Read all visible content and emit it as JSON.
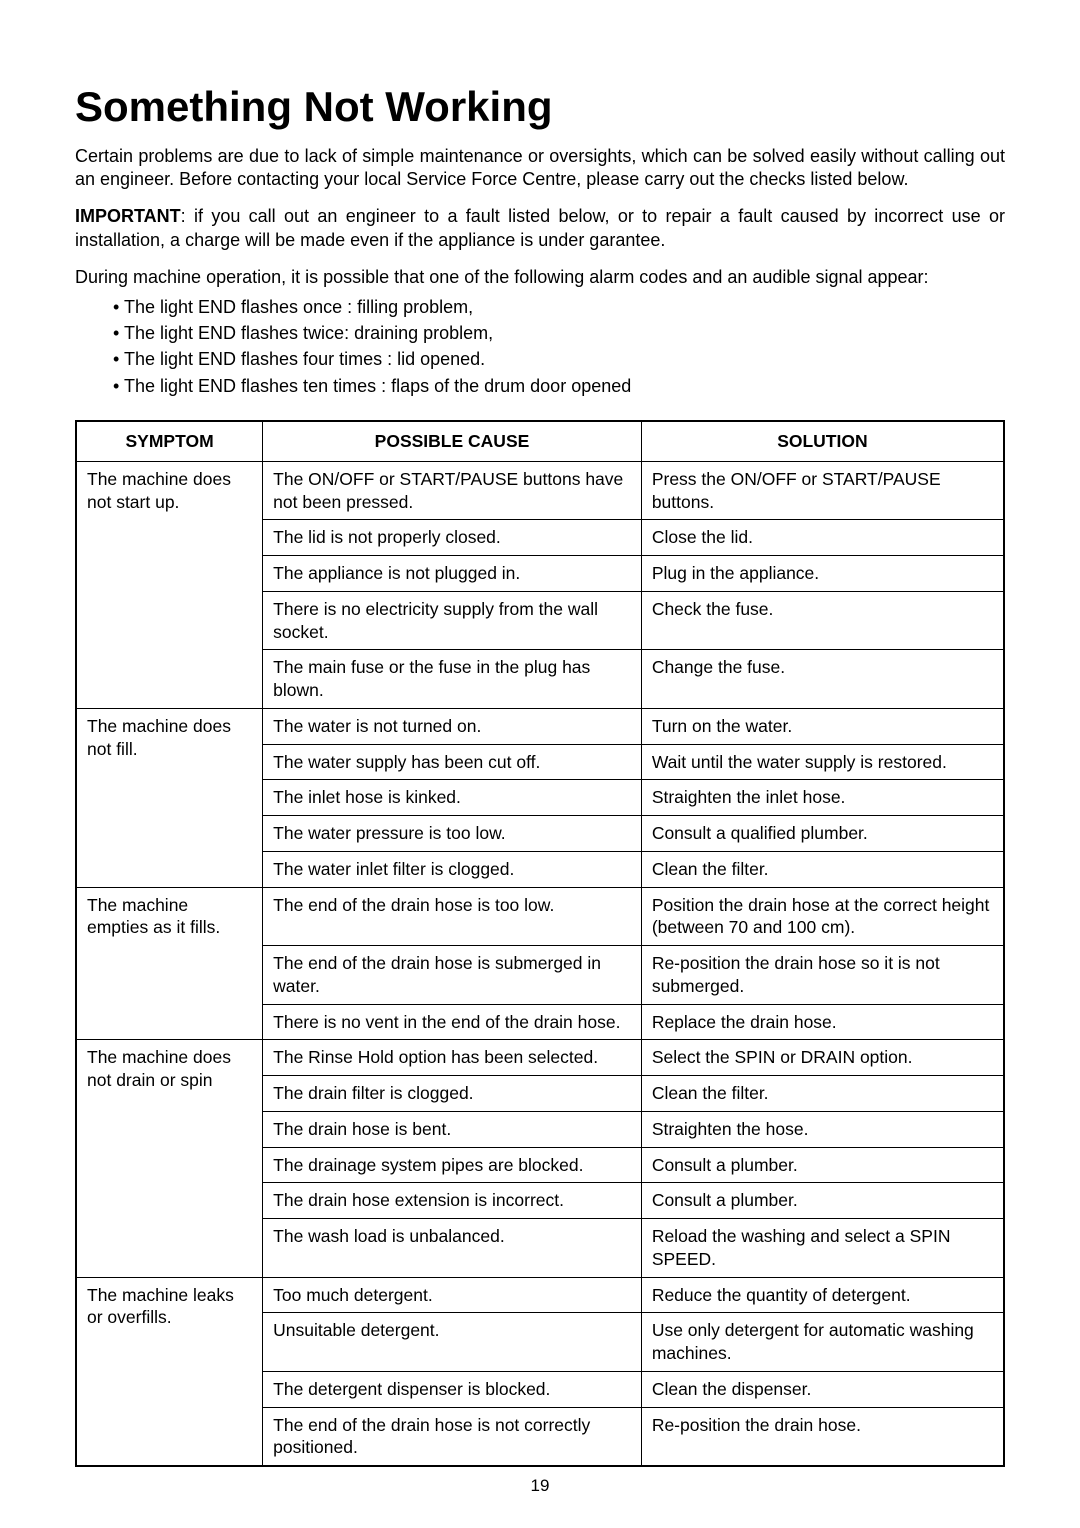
{
  "title": "Something Not Working",
  "intro": "Certain problems are due to lack of simple maintenance or oversights, which can be solved easily without calling out an engineer. Before contacting your local Service Force Centre, please carry out the checks listed below.",
  "important_label": "IMPORTANT",
  "important_text": ": if you call out an engineer to a fault listed below, or to repair a fault caused by incorrect use or installation, a charge will be made even if the appliance is under garantee.",
  "during": "During machine operation, it is possible that one of the following alarm codes and an audible signal appear:",
  "bullets": [
    "The light END flashes once : filling problem,",
    "The light END flashes twice: draining problem,",
    "The light END flashes four times : lid opened.",
    "The light END flashes ten times : flaps of the drum door opened"
  ],
  "headers": {
    "c1": "SYMPTOM",
    "c2": "POSSIBLE CAUSE",
    "c3": "SOLUTION"
  },
  "groups": [
    {
      "symptom": "The machine does not start up.",
      "rows": [
        {
          "cause": "The ON/OFF or START/PAUSE buttons have not been pressed.",
          "solution": "Press the ON/OFF or START/PAUSE buttons."
        },
        {
          "cause": "The lid is not properly closed.",
          "solution": "Close the lid."
        },
        {
          "cause": "The appliance is not plugged in.",
          "solution": "Plug in the appliance."
        },
        {
          "cause": "There is no electricity supply from the wall socket.",
          "solution": "Check the fuse."
        },
        {
          "cause": "The main fuse or the fuse in the plug has blown.",
          "solution": "Change the fuse."
        }
      ]
    },
    {
      "symptom": "The machine does not fill.",
      "rows": [
        {
          "cause": "The water is not turned on.",
          "solution": "Turn on the water."
        },
        {
          "cause": "The water supply has been cut off.",
          "solution": "Wait until the water supply is restored."
        },
        {
          "cause": "The inlet hose is kinked.",
          "solution": "Straighten the inlet hose."
        },
        {
          "cause": "The water pressure is too low.",
          "solution": "Consult a qualified plumber."
        },
        {
          "cause": "The water inlet filter is clogged.",
          "solution": "Clean the filter."
        }
      ]
    },
    {
      "symptom": "The machine empties as it fills.",
      "rows": [
        {
          "cause": "The end of the drain hose is too low.",
          "solution": "Position the drain hose at the correct height (between 70 and 100 cm)."
        },
        {
          "cause": "The end of the drain hose is submerged in water.",
          "solution": "Re-position the drain hose so it is not submerged."
        },
        {
          "cause": "There is no vent in the end of the drain hose.",
          "solution": "Replace the drain hose."
        }
      ]
    },
    {
      "symptom": "The machine does not drain or spin",
      "rows": [
        {
          "cause": "The Rinse Hold option has been selected.",
          "solution": "Select the SPIN or DRAIN option."
        },
        {
          "cause": "The drain filter is clogged.",
          "solution": "Clean the filter."
        },
        {
          "cause": "The drain hose is bent.",
          "solution": "Straighten the hose."
        },
        {
          "cause": "The drainage system pipes are blocked.",
          "solution": "Consult a plumber."
        },
        {
          "cause": "The drain hose extension is incorrect.",
          "solution": "Consult a plumber."
        },
        {
          "cause": "The wash load is unbalanced.",
          "solution": "Reload the washing and select a SPIN SPEED."
        }
      ]
    },
    {
      "symptom": "The machine leaks or overfills.",
      "rows": [
        {
          "cause": "Too much detergent.",
          "solution": "Reduce the quantity of detergent."
        },
        {
          "cause": "Unsuitable detergent.",
          "solution": "Use only detergent for automatic washing machines."
        },
        {
          "cause": "The detergent dispenser is blocked.",
          "solution": "Clean the dispenser."
        },
        {
          "cause": "The end of the drain hose is not correctly positioned.",
          "solution": "Re-position the drain hose."
        }
      ]
    }
  ],
  "page_number": "19"
}
